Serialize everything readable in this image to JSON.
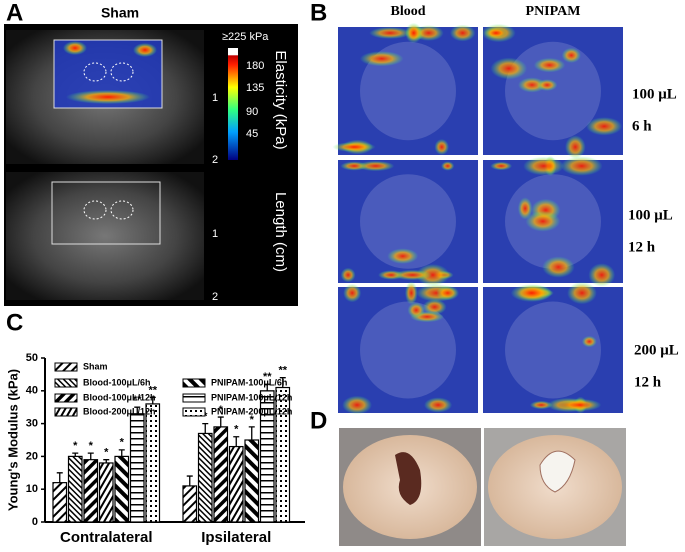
{
  "panels": {
    "a": {
      "label": "A",
      "title": "Sham",
      "colorbar_max": "≥225 kPa",
      "colorbar_ticks": [
        "180",
        "135",
        "90",
        "45"
      ],
      "elasticity_label": "Elasticity (kPa)",
      "length_label": "Length (cm)",
      "length_ticks": [
        "1",
        "2",
        "1",
        "2"
      ]
    },
    "b": {
      "label": "B",
      "columns": [
        "Blood",
        "PNIPAM"
      ],
      "rows": [
        [
          "100 μL",
          "6 h"
        ],
        [
          "100 μL",
          "12 h"
        ],
        [
          "200 μL",
          "12 h"
        ]
      ]
    },
    "c": {
      "label": "C"
    },
    "d": {
      "label": "D"
    }
  },
  "chart_data": {
    "type": "bar",
    "y_label": "Young's Modulus (kPa)",
    "categories": [
      "Contralateral",
      "Ipsilateral"
    ],
    "ylim": [
      0,
      50
    ],
    "yticks": [
      0,
      10,
      20,
      30,
      40,
      50
    ],
    "series": [
      {
        "name": "Sham",
        "color": "#000000",
        "values": [
          12,
          11
        ],
        "errors": [
          3,
          3
        ],
        "significance": [
          null,
          null
        ]
      },
      {
        "name": "Blood-100μL/6h",
        "color": "#000000",
        "values": [
          20,
          27
        ],
        "errors": [
          1,
          3
        ],
        "significance": [
          "*",
          "*"
        ]
      },
      {
        "name": "Blood-100μL/12h",
        "color": "#000000",
        "values": [
          19,
          29
        ],
        "errors": [
          2,
          3
        ],
        "significance": [
          "*",
          "*"
        ]
      },
      {
        "name": "Blood-200μL/12h",
        "color": "#000000",
        "values": [
          18,
          23
        ],
        "errors": [
          1,
          3
        ],
        "significance": [
          "*",
          "*"
        ]
      },
      {
        "name": "PNIPAM-100μL/6h",
        "color": "#000000",
        "values": [
          20,
          25
        ],
        "errors": [
          2,
          4
        ],
        "significance": [
          "*",
          "*"
        ]
      },
      {
        "name": "PNIPAM-100μL/12h",
        "color": "#000000",
        "values": [
          33,
          40
        ],
        "errors": [
          2,
          2
        ],
        "significance": [
          "**",
          "**"
        ]
      },
      {
        "name": "PNIPAM-200μL/12h",
        "color": "#000000",
        "values": [
          36,
          41
        ],
        "errors": [
          2,
          3
        ],
        "significance": [
          "**",
          "**"
        ]
      }
    ]
  }
}
